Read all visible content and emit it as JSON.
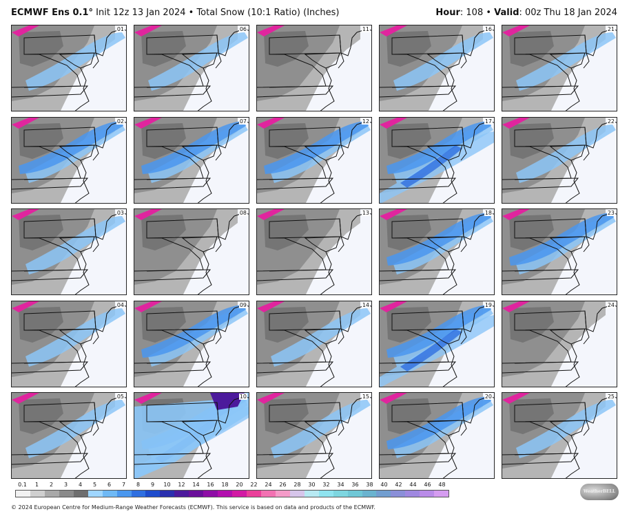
{
  "header": {
    "model": "ECMWF Ens 0.1",
    "degree": "°",
    "init_text": " Init 12z 13 Jan 2024 • Total Snow (10:1 Ratio) (Inches)",
    "hour_label": "Hour",
    "hour_value": ": 108 • ",
    "valid_label": "Valid",
    "valid_value": ": 00z Thu 18 Jan 2024"
  },
  "panels": [
    {
      "member": "01",
      "intensity": 1
    },
    {
      "member": "06",
      "intensity": 1
    },
    {
      "member": "11",
      "intensity": 0
    },
    {
      "member": "16",
      "intensity": 1
    },
    {
      "member": "21",
      "intensity": 1
    },
    {
      "member": "02",
      "intensity": 2
    },
    {
      "member": "07",
      "intensity": 2
    },
    {
      "member": "12",
      "intensity": 2
    },
    {
      "member": "17",
      "intensity": 3
    },
    {
      "member": "22",
      "intensity": 1
    },
    {
      "member": "03",
      "intensity": 1
    },
    {
      "member": "08",
      "intensity": 0
    },
    {
      "member": "13",
      "intensity": 0
    },
    {
      "member": "18",
      "intensity": 2
    },
    {
      "member": "23",
      "intensity": 2
    },
    {
      "member": "04",
      "intensity": 1
    },
    {
      "member": "09",
      "intensity": 2
    },
    {
      "member": "14",
      "intensity": 1
    },
    {
      "member": "19",
      "intensity": 3
    },
    {
      "member": "24",
      "intensity": 0
    },
    {
      "member": "05",
      "intensity": 1
    },
    {
      "member": "10",
      "intensity": 4
    },
    {
      "member": "15",
      "intensity": 1
    },
    {
      "member": "20",
      "intensity": 2
    },
    {
      "member": "25",
      "intensity": 1
    }
  ],
  "scale": {
    "labels": [
      "0.1",
      "1",
      "2",
      "3",
      "4",
      "5",
      "6",
      "7",
      "8",
      "9",
      "10",
      "12",
      "14",
      "16",
      "18",
      "20",
      "22",
      "24",
      "26",
      "28",
      "30",
      "32",
      "34",
      "36",
      "38",
      "40",
      "42",
      "44",
      "46",
      "48"
    ],
    "colors": [
      "#f2f2f2",
      "#cfcfcf",
      "#a9a9a9",
      "#8a8a8a",
      "#6e6e6e",
      "#9fd6ff",
      "#6fb9f5",
      "#4a97ee",
      "#2f6fe0",
      "#1e4ccc",
      "#2a2fae",
      "#4c1a9c",
      "#6a0f9a",
      "#8e0ea6",
      "#b20fae",
      "#d21aa4",
      "#ea3f9a",
      "#f271b2",
      "#f49bc8",
      "#d6c5ea",
      "#b7e9f2",
      "#8fe3ef",
      "#7ed6e0",
      "#6fc7d6",
      "#6ab3cf",
      "#729ed0",
      "#8a8fd8",
      "#9f88e0",
      "#b98be8",
      "#d59cf0"
    ]
  },
  "footer": "© 2024 European Centre for Medium-Range Weather Forecasts (ECMWF). This service is based on data and products of the ECMWF.",
  "logo_text": "WeatherBELL",
  "map_colors": {
    "ocean": "#f4f6fc",
    "gray_light": "#b5b5b5",
    "gray_mid": "#8f8f8f",
    "gray_dark": "#6a6a6a",
    "blue_light": "#8cc6f7",
    "blue_mid": "#4a97ee",
    "blue_dark": "#2f6fe0",
    "purple": "#4c1a9c",
    "magenta": "#e0259e"
  }
}
